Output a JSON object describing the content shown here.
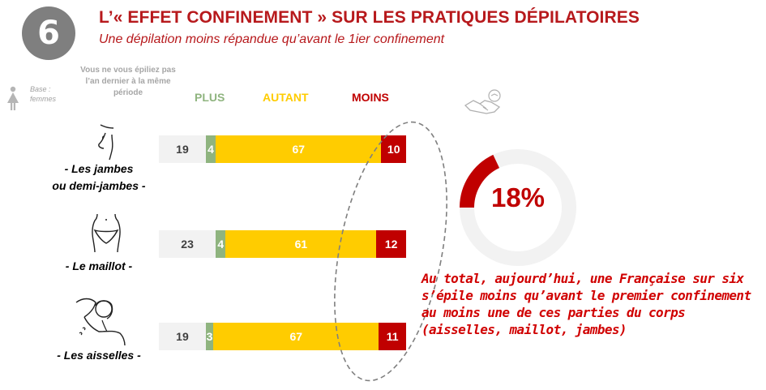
{
  "header": {
    "badge": "6",
    "title": "L’« EFFET CONFINEMENT »  SUR LES PRATIQUES DÉPILATOIRES",
    "subtitle": "Une dépilation moins répandue qu’avant le 1ier confinement"
  },
  "base": {
    "label": "Base : femmes",
    "icon": "woman-figure-icon"
  },
  "colors": {
    "none": "#f2f2f2",
    "plus": "#8fb47f",
    "autant": "#ffcc00",
    "moins": "#c00000",
    "title": "#b7191c"
  },
  "chart_data": {
    "type": "bar",
    "orientation": "horizontal",
    "stacked": true,
    "unit": "%",
    "columns": {
      "none": "Vous ne vous épiliez pas l’an dernier à la même période",
      "plus": "PLUS",
      "autant": "AUTANT",
      "moins": "MOINS"
    },
    "categories": [
      "- Les jambes ou demi-jambes -",
      "- Le maillot -",
      "- Les aisselles -"
    ],
    "rows": [
      {
        "label_line1": "- Les jambes",
        "label_line2": "ou demi-jambes -",
        "icon": "legs-icon",
        "none": 19,
        "plus": 4,
        "autant": 67,
        "moins": 10
      },
      {
        "label_line1": "- Le maillot -",
        "label_line2": "",
        "icon": "bikini-area-icon",
        "none": 23,
        "plus": 4,
        "autant": 61,
        "moins": 12
      },
      {
        "label_line1": "- Les aisselles -",
        "label_line2": "",
        "icon": "armpit-icon",
        "none": 19,
        "plus": 3,
        "autant": 67,
        "moins": 11
      }
    ],
    "donut": {
      "value": 18,
      "label": "18%",
      "max": 100
    }
  },
  "conclusion": {
    "line1": "Au total, aujourd’hui, une Française sur six",
    "line2": "s’épile moins qu’avant le premier confinement",
    "line3": "au moins une de ces parties du corps",
    "line4": "(aisselles, maillot, jambes)"
  }
}
